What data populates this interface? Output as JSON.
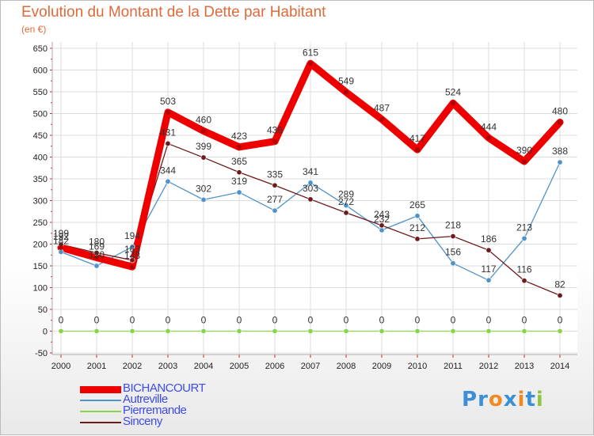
{
  "chart_data": {
    "type": "line",
    "title": "Evolution du Montant de la Dette par Habitant",
    "subtitle": "(en €)",
    "x": [
      "2000",
      "2001",
      "2002",
      "2003",
      "2004",
      "2005",
      "2006",
      "2007",
      "2008",
      "2009",
      "2010",
      "2011",
      "2012",
      "2013",
      "2014"
    ],
    "yticks": [
      "650",
      "600",
      "550",
      "500",
      "450",
      "400",
      "350",
      "300",
      "250",
      "200",
      "150",
      "100",
      "50",
      "0",
      "-50"
    ],
    "ylim": [
      -50,
      650
    ],
    "grid": true,
    "legend_position": "bottom-left",
    "series": [
      {
        "name": "BICHANCOURT",
        "color": "#ee0000",
        "values": [
          192,
          169,
          148,
          503,
          460,
          423,
          436,
          615,
          549,
          487,
          417,
          524,
          444,
          390,
          480
        ],
        "labels": [
          "192",
          "169",
          "148",
          "503",
          "460",
          "423",
          "436",
          "615",
          "549",
          "487",
          "417",
          "524",
          "444",
          "390",
          "480"
        ]
      },
      {
        "name": "Autreville",
        "color": "#4f93c8",
        "values": [
          182,
          150,
          194,
          344,
          302,
          319,
          277,
          341,
          289,
          232,
          265,
          156,
          117,
          213,
          388
        ],
        "labels": [
          "182",
          "150",
          "194",
          "344",
          "302",
          "319",
          "277",
          "341",
          "289",
          "232",
          "265",
          "156",
          "117",
          "213",
          "388"
        ]
      },
      {
        "name": "Pierremande",
        "color": "#88d44a",
        "values": [
          0,
          0,
          0,
          0,
          0,
          0,
          0,
          0,
          0,
          0,
          0,
          0,
          0,
          0,
          0
        ],
        "labels": [
          "0",
          "0",
          "0",
          "0",
          "0",
          "0",
          "0",
          "0",
          "0",
          "0",
          "0",
          "0",
          "0",
          "0",
          "0"
        ]
      },
      {
        "name": "Sinceny",
        "color": "#6e1a1a",
        "values": [
          199,
          180,
          163,
          431,
          399,
          365,
          335,
          303,
          272,
          243,
          212,
          218,
          186,
          116,
          82
        ],
        "labels": [
          "199",
          "180",
          "163",
          "431",
          "399",
          "365",
          "335",
          "303",
          "272",
          "243",
          "212",
          "218",
          "186",
          "116",
          "82"
        ]
      }
    ]
  },
  "logo": {
    "text": "Proxiti",
    "letters": [
      "P",
      "r",
      "o",
      "x",
      "i",
      "t",
      "i"
    ],
    "colors": [
      "#3a8fd6",
      "#3a8fd6",
      "#f08a22",
      "#3a8fd6",
      "#f08a22",
      "#3a8fd6",
      "#8dc63f"
    ]
  }
}
